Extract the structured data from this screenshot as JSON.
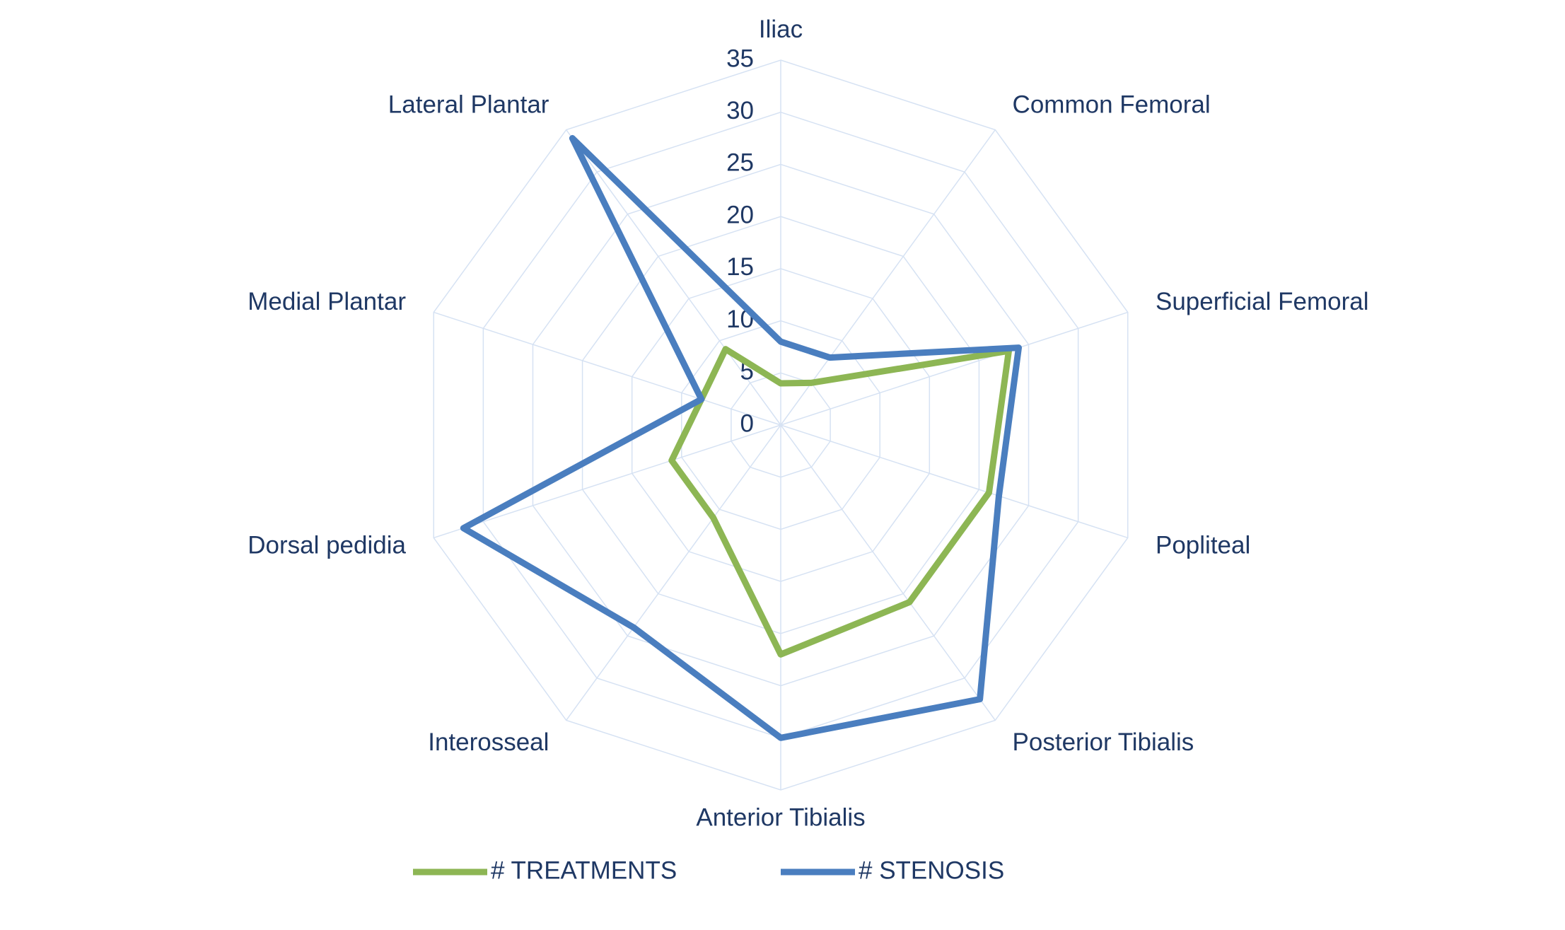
{
  "chart_data": {
    "type": "radar",
    "categories": [
      "Iliac",
      "Common Femoral",
      "Superficial Femoral",
      "Popliteal",
      "Posterior Tibialis",
      "Anterior Tibialis",
      "Interosseal",
      "Dorsal pedidia",
      "Medial Plantar",
      "Lateral Plantar"
    ],
    "series": [
      {
        "name": "# TREATMENTS",
        "color": "#8db654",
        "values": [
          4,
          5,
          23,
          21,
          21,
          22,
          11,
          11,
          8,
          9
        ]
      },
      {
        "name": "# STENOSIS",
        "color": "#4a7ebf",
        "values": [
          8,
          8,
          24,
          22,
          32.5,
          30,
          24,
          32,
          8,
          34
        ]
      }
    ],
    "ylim": [
      0,
      35
    ],
    "yticks": [
      0,
      5,
      10,
      15,
      20,
      25,
      30,
      35
    ],
    "grid": true,
    "grid_color": "#d6e2f3",
    "legend": "bottom"
  }
}
